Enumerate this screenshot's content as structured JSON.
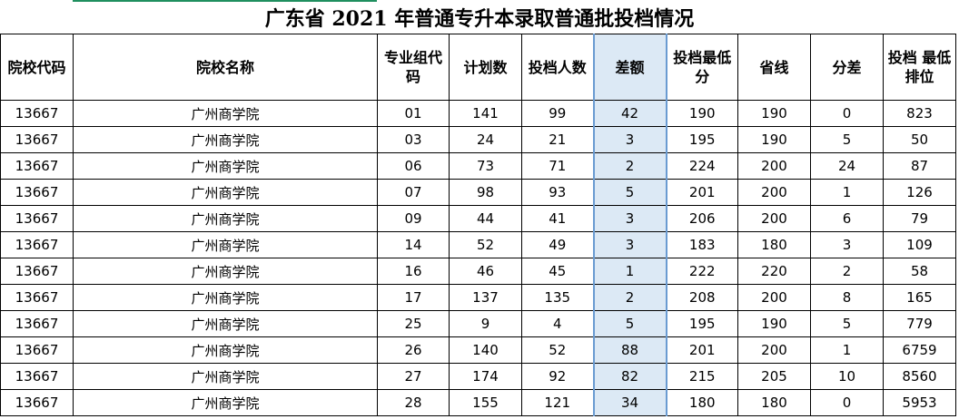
{
  "title": "广东省 2021 年普通专升本录取普通批投档情况",
  "headers": [
    "院校代码",
    "院校名称",
    "专业组代码",
    "计划数",
    "投档人数",
    "差额",
    "投档最低分",
    "省线",
    "分差",
    "投档 最低排位"
  ],
  "rows": [
    [
      "13667",
      "广州商学院",
      "01",
      "141",
      "99",
      "42",
      "190",
      "190",
      "0",
      "823"
    ],
    [
      "13667",
      "广州商学院",
      "03",
      "24",
      "21",
      "3",
      "195",
      "190",
      "5",
      "50"
    ],
    [
      "13667",
      "广州商学院",
      "06",
      "73",
      "71",
      "2",
      "224",
      "200",
      "24",
      "87"
    ],
    [
      "13667",
      "广州商学院",
      "07",
      "98",
      "93",
      "5",
      "201",
      "200",
      "1",
      "126"
    ],
    [
      "13667",
      "广州商学院",
      "09",
      "44",
      "41",
      "3",
      "206",
      "200",
      "6",
      "79"
    ],
    [
      "13667",
      "广州商学院",
      "14",
      "52",
      "49",
      "3",
      "183",
      "180",
      "3",
      "109"
    ],
    [
      "13667",
      "广州商学院",
      "16",
      "46",
      "45",
      "1",
      "222",
      "220",
      "2",
      "58"
    ],
    [
      "13667",
      "广州商学院",
      "17",
      "137",
      "135",
      "2",
      "208",
      "200",
      "8",
      "165"
    ],
    [
      "13667",
      "广州商学院",
      "25",
      "9",
      "4",
      "5",
      "195",
      "190",
      "5",
      "779"
    ],
    [
      "13667",
      "广州商学院",
      "26",
      "140",
      "52",
      "88",
      "201",
      "200",
      "1",
      "6759"
    ],
    [
      "13667",
      "广州商学院",
      "27",
      "174",
      "92",
      "82",
      "215",
      "205",
      "10",
      "8560"
    ],
    [
      "13667",
      "广州商学院",
      "28",
      "155",
      "121",
      "34",
      "180",
      "180",
      "0",
      "5953"
    ]
  ],
  "colors": {
    "highlight_column": "#dce9f5",
    "accent_line": "#1f8f5f"
  }
}
